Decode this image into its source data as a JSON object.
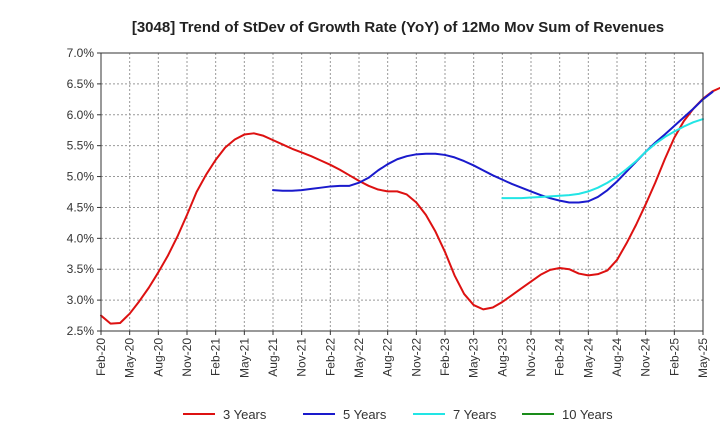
{
  "chart_data": {
    "type": "line",
    "title": "[3048]  Trend of StDev of Growth Rate (YoY) of 12Mo Mov Sum of Revenues",
    "xlabel": "",
    "ylabel": "",
    "ylim": [
      0.025,
      0.07
    ],
    "yticks": [
      "2.5%",
      "3.0%",
      "3.5%",
      "4.0%",
      "4.5%",
      "5.0%",
      "5.5%",
      "6.0%",
      "6.5%",
      "7.0%"
    ],
    "xticks": [
      "Feb-20",
      "May-20",
      "Aug-20",
      "Nov-20",
      "Feb-21",
      "May-21",
      "Aug-21",
      "Nov-21",
      "Feb-22",
      "May-22",
      "Aug-22",
      "Nov-22",
      "Feb-23",
      "May-23",
      "Aug-23",
      "Nov-23",
      "Feb-24",
      "May-24",
      "Aug-24",
      "Nov-24",
      "Feb-25",
      "May-25"
    ],
    "x_start": "Feb-20",
    "grid": true,
    "legend_position": "bottom",
    "series": [
      {
        "name": "3 Years",
        "color": "#dd1111",
        "start_index": 0,
        "values": [
          0.0275,
          0.0262,
          0.0263,
          0.0278,
          0.0298,
          0.032,
          0.0345,
          0.0372,
          0.0403,
          0.0438,
          0.0475,
          0.0503,
          0.0527,
          0.0547,
          0.056,
          0.0568,
          0.057,
          0.0566,
          0.0559,
          0.0552,
          0.0545,
          0.0539,
          0.0533,
          0.0526,
          0.0519,
          0.0511,
          0.0502,
          0.0493,
          0.0485,
          0.0479,
          0.0476,
          0.0476,
          0.0471,
          0.0458,
          0.0438,
          0.0411,
          0.0378,
          0.034,
          0.031,
          0.0292,
          0.0285,
          0.0288,
          0.0297,
          0.0308,
          0.0319,
          0.033,
          0.0341,
          0.0349,
          0.0352,
          0.035,
          0.0343,
          0.034,
          0.0342,
          0.0348,
          0.0365,
          0.0392,
          0.0422,
          0.0455,
          0.049,
          0.0528,
          0.0563,
          0.059,
          0.061,
          0.0626,
          0.0638,
          0.0645,
          0.0648
        ]
      },
      {
        "name": "5 Years",
        "color": "#1a1acc",
        "start_index": 18,
        "values": [
          0.0478,
          0.0477,
          0.0477,
          0.0478,
          0.048,
          0.0482,
          0.0484,
          0.0485,
          0.0485,
          0.049,
          0.0498,
          0.051,
          0.052,
          0.0528,
          0.0533,
          0.0536,
          0.0537,
          0.0537,
          0.0535,
          0.0531,
          0.0525,
          0.0518,
          0.051,
          0.0502,
          0.0495,
          0.0488,
          0.0482,
          0.0476,
          0.047,
          0.0465,
          0.0461,
          0.0458,
          0.0458,
          0.046,
          0.0467,
          0.0478,
          0.0492,
          0.0508,
          0.0524,
          0.054,
          0.0555,
          0.0568,
          0.0582,
          0.0596,
          0.061,
          0.0625,
          0.0637
        ]
      },
      {
        "name": "7 Years",
        "color": "#22e5e5",
        "start_index": 42,
        "values": [
          0.0465,
          0.0465,
          0.0465,
          0.0466,
          0.0467,
          0.0468,
          0.0469,
          0.047,
          0.0472,
          0.0476,
          0.0482,
          0.049,
          0.05,
          0.0512,
          0.0525,
          0.054,
          0.0553,
          0.0564,
          0.0573,
          0.0581,
          0.0588,
          0.0593
        ]
      },
      {
        "name": "10 Years",
        "color": "#1a8c1a",
        "start_index": 0,
        "values": []
      }
    ]
  }
}
